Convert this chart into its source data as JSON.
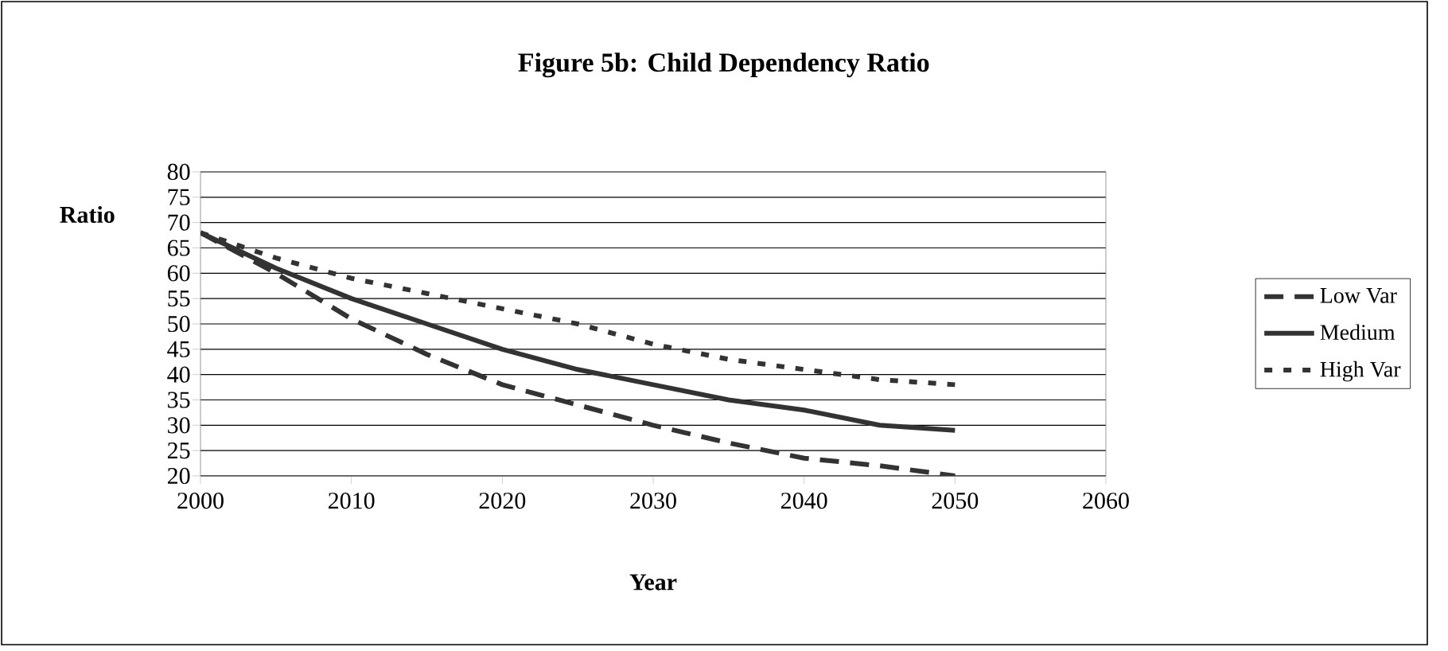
{
  "chart_data": {
    "type": "line",
    "title": "Figure 5b: Child Dependency Ratio",
    "xlabel": "Year",
    "ylabel": "Ratio",
    "x": [
      2000,
      2005,
      2010,
      2015,
      2020,
      2025,
      2030,
      2035,
      2040,
      2045,
      2050
    ],
    "series": [
      {
        "name": "Low Var",
        "color": "#333333",
        "line_style": "dashed",
        "values": [
          68,
          60,
          51,
          44,
          38,
          34,
          30,
          26.5,
          23.5,
          22,
          20
        ]
      },
      {
        "name": "Medium",
        "color": "#333333",
        "line_style": "solid",
        "values": [
          68,
          61,
          55,
          50,
          45,
          41,
          38,
          35,
          33,
          30,
          29
        ]
      },
      {
        "name": "High Var",
        "color": "#333333",
        "line_style": "dotted",
        "values": [
          68,
          63,
          59,
          56,
          53,
          50,
          46,
          43,
          41,
          39,
          38
        ]
      }
    ],
    "xlim": [
      2000,
      2060
    ],
    "xticks": [
      2000,
      2010,
      2020,
      2030,
      2040,
      2050,
      2060
    ],
    "ylim": [
      20,
      80
    ],
    "yticks": [
      20,
      25,
      30,
      35,
      40,
      45,
      50,
      55,
      60,
      65,
      70,
      75,
      80
    ],
    "grid": "y",
    "legend": "right",
    "marker": "none"
  }
}
